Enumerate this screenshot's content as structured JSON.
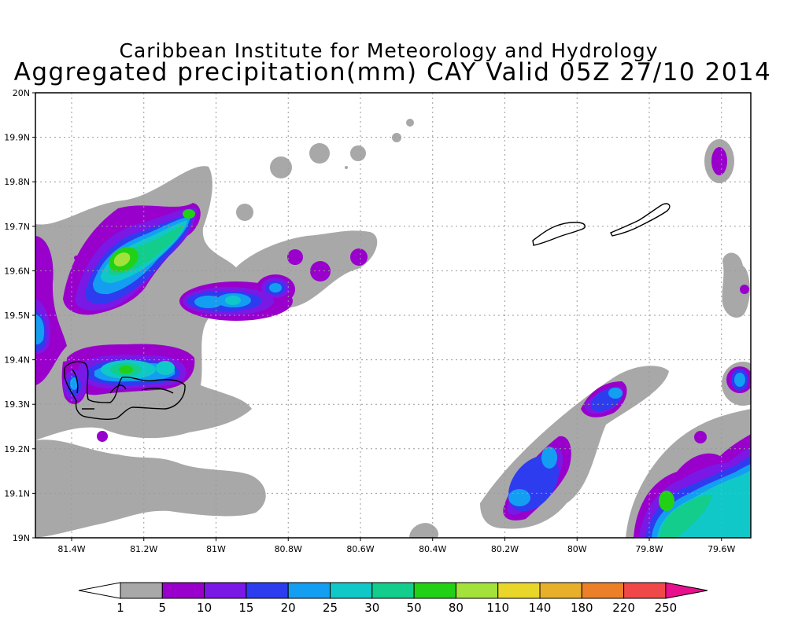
{
  "title": {
    "line1": "Caribbean Institute for Meteorology and Hydrology",
    "line2": "Aggregated precipitation(mm) CAY Valid 05Z 27/10 2014"
  },
  "axes": {
    "lat_labels": [
      "19N",
      "19.1N",
      "19.2N",
      "19.3N",
      "19.4N",
      "19.5N",
      "19.6N",
      "19.7N",
      "19.8N",
      "19.9N",
      "20N"
    ],
    "lon_labels": [
      "81.4W",
      "81.2W",
      "81W",
      "80.8W",
      "80.6W",
      "80.4W",
      "80.2W",
      "80W",
      "79.8W",
      "79.6W"
    ]
  },
  "colorbar": {
    "labels": [
      "1",
      "5",
      "10",
      "15",
      "20",
      "25",
      "30",
      "50",
      "80",
      "110",
      "140",
      "180",
      "220",
      "250"
    ],
    "colors": [
      "#a8a8a8",
      "#9900cc",
      "#7a18e6",
      "#2e3cf0",
      "#149ef2",
      "#10c8c8",
      "#12cd8c",
      "#22d016",
      "#a2e23a",
      "#e8d62a",
      "#e8b02a",
      "#ec8028",
      "#f04848",
      "#e8108c"
    ]
  },
  "map_colors": {
    "gray": "#a8a8a8",
    "purple": "#9900cc",
    "violet": "#7a18e6",
    "blue": "#2e3cf0",
    "sky": "#149ef2",
    "cyan": "#10c8c8",
    "teal": "#12cd8c",
    "green": "#22d016",
    "lime": "#a2e23a"
  },
  "icons": [
    "cayman-islands-outline"
  ]
}
